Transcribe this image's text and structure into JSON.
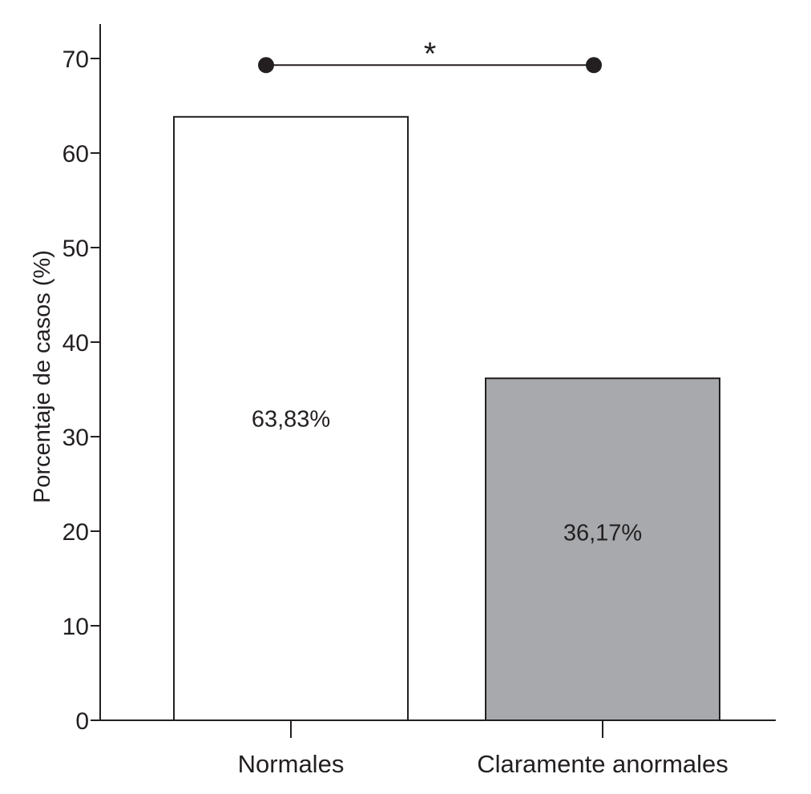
{
  "chart_data": {
    "type": "bar",
    "categories": [
      "Normales",
      "Claramente anormales"
    ],
    "values": [
      63.83,
      36.17
    ],
    "data_labels": [
      "63,83%",
      "36,17%"
    ],
    "colors": [
      "#ffffff",
      "#a7a9ac"
    ],
    "xlabel": "",
    "ylabel": "Porcentaje de casos (%)",
    "ylim": [
      0,
      70
    ],
    "yticks": [
      0,
      10,
      20,
      30,
      40,
      50,
      60,
      70
    ],
    "ytick_labels": [
      "0",
      "10",
      "20",
      "30",
      "40",
      "50",
      "60",
      "70"
    ],
    "grid": false,
    "significance": {
      "marker": "*",
      "between": [
        "Normales",
        "Claramente anormales"
      ],
      "y": 69.3
    }
  }
}
